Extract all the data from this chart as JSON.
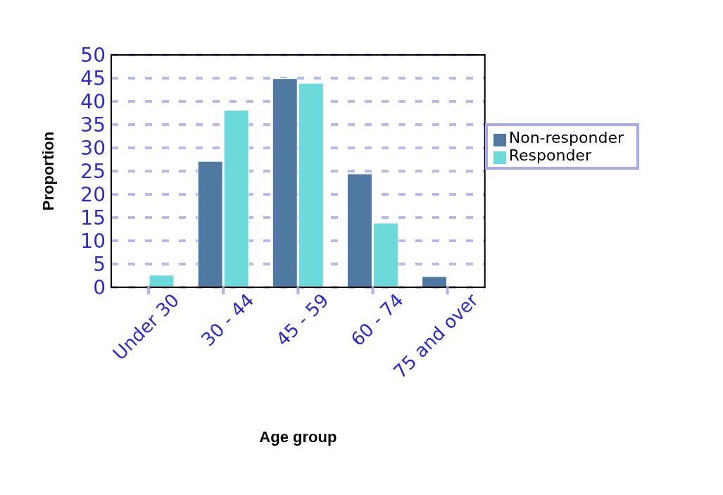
{
  "chart_data": {
    "type": "bar",
    "xlabel": "Age group",
    "ylabel": "Proportion",
    "categories": [
      "Under 30",
      "30 - 44",
      "45 - 59",
      "60 - 74",
      "75 and over"
    ],
    "series": [
      {
        "name": "Non-responder",
        "color": "#4f79a3",
        "values": [
          0,
          27.1,
          44.9,
          24.4,
          2.3
        ]
      },
      {
        "name": "Responder",
        "color": "#6cdada",
        "values": [
          2.6,
          38.1,
          43.9,
          13.8,
          0
        ]
      }
    ],
    "ylim": [
      0,
      50
    ],
    "yticks": [
      0,
      5,
      10,
      15,
      20,
      25,
      30,
      35,
      40,
      45,
      50
    ],
    "grid": "y",
    "legend": "right"
  }
}
